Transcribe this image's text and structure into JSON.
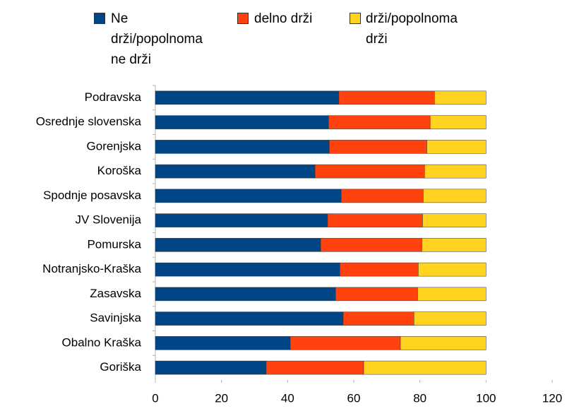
{
  "chart_data": {
    "type": "stacked_barh",
    "categories": [
      "Podravska",
      "Osrednje slovenska",
      "Gorenjska",
      "Koroška",
      "Spodnje posavska",
      "JV Slovenija",
      "Pomurska",
      "Notranjsko-Kraška",
      "Zasavska",
      "Savinjska",
      "Obalno Kraška",
      "Goriška"
    ],
    "series": [
      {
        "name": "Ne drži/popolnoma ne drži",
        "color": "#004586",
        "values": [
          55.5,
          52.4,
          52.6,
          48.3,
          56.2,
          52.1,
          50.0,
          55.8,
          54.5,
          56.8,
          40.8,
          33.5
        ]
      },
      {
        "name": "delno drži",
        "color": "#ff420e",
        "values": [
          28.9,
          30.7,
          29.5,
          33.1,
          24.8,
          28.7,
          30.6,
          23.7,
          24.8,
          21.4,
          33.3,
          29.5
        ]
      },
      {
        "name": "drži/popolnoma drži",
        "color": "#ffd320",
        "values": [
          15.6,
          16.9,
          17.9,
          18.6,
          19.0,
          19.2,
          19.4,
          20.5,
          20.7,
          21.8,
          25.9,
          37.0
        ]
      }
    ],
    "xlim": [
      0,
      120
    ],
    "xticks": [
      0,
      20,
      40,
      60,
      80,
      100,
      120
    ],
    "legend": "top"
  }
}
